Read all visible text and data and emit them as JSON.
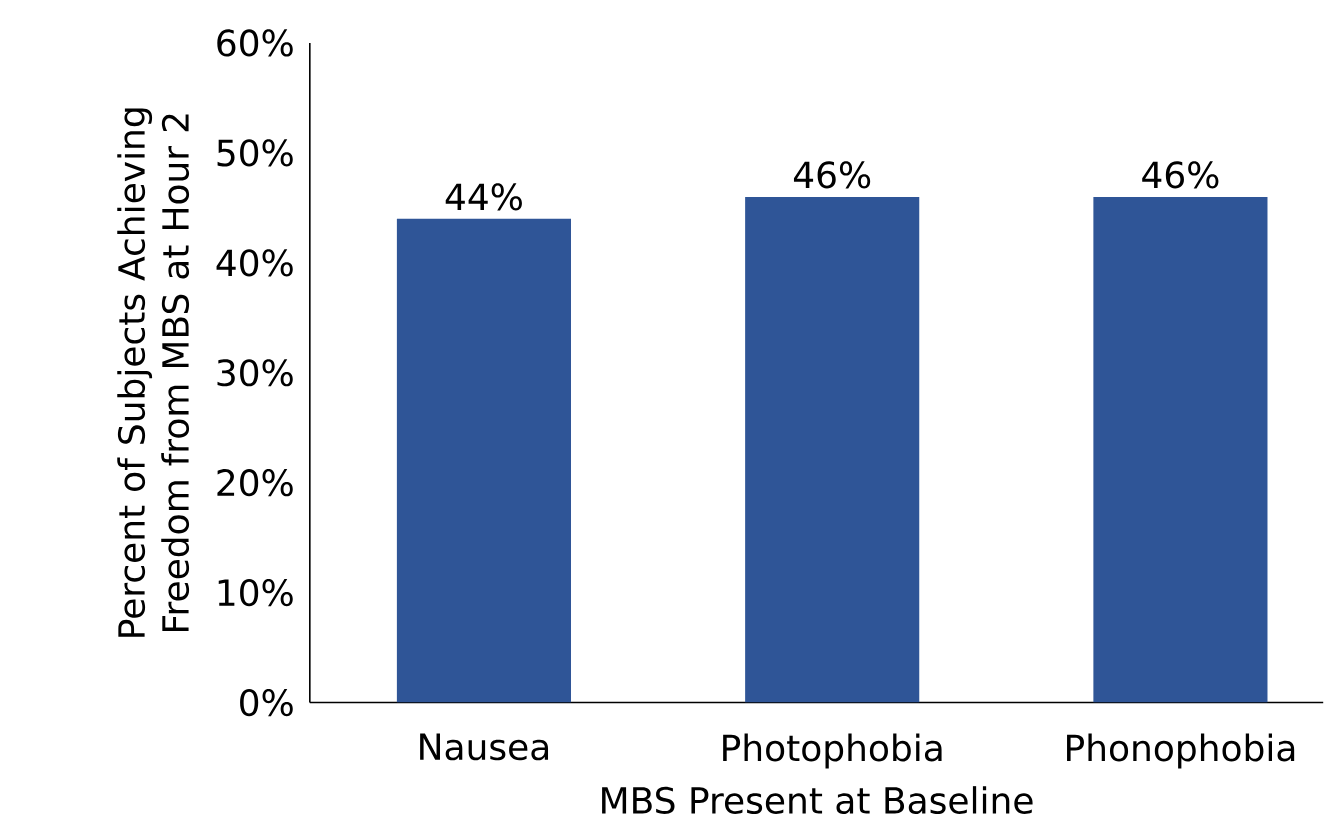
{
  "chart_data": {
    "type": "bar",
    "xlabel": "MBS Present at Baseline",
    "ylabel": "Percent of Subjects Achieving Freedom from MBS at Hour 2",
    "categories": [
      "Nausea",
      "Photophobia",
      "Phonophobia"
    ],
    "values": [
      44,
      46,
      46
    ],
    "value_labels": [
      "44%",
      "46%",
      "46%"
    ],
    "color": "#2f5597",
    "ylim": [
      0,
      60
    ],
    "yticks": [
      {
        "value": 0,
        "label": "0%"
      },
      {
        "value": 10,
        "label": "10%"
      },
      {
        "value": 20,
        "label": "20%"
      },
      {
        "value": 30,
        "label": "30%"
      },
      {
        "value": 40,
        "label": "40%"
      },
      {
        "value": 50,
        "label": "50%"
      },
      {
        "value": 60,
        "label": "60%"
      }
    ],
    "grid": false
  }
}
